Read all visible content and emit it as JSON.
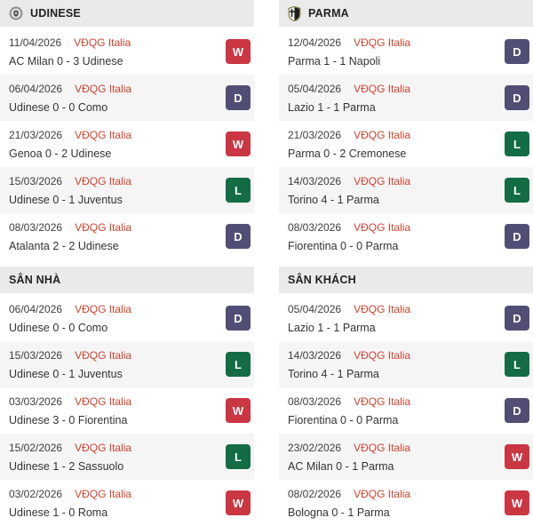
{
  "colors": {
    "win": "#ca3642",
    "draw": "#514e76",
    "loss": "#146c45",
    "league_text": "#d0432e",
    "header_bg": "#eaeaea",
    "row_alt_bg": "#f5f5f6"
  },
  "result_legend": {
    "win_letter": "W",
    "draw_letter": "D",
    "loss_letter": "L"
  },
  "sections": [
    {
      "id": "udinese-recent-form",
      "title": "UDINESE",
      "icon": "udinese-crest-icon",
      "matches": [
        {
          "date": "11/04/2026",
          "league": "VĐQG Italia",
          "match": "AC Milan 0 - 3 Udinese",
          "result": "W"
        },
        {
          "date": "06/04/2026",
          "league": "VĐQG Italia",
          "match": "Udinese 0 - 0 Como",
          "result": "D"
        },
        {
          "date": "21/03/2026",
          "league": "VĐQG Italia",
          "match": "Genoa 0 - 2 Udinese",
          "result": "W"
        },
        {
          "date": "15/03/2026",
          "league": "VĐQG Italia",
          "match": "Udinese 0 - 1 Juventus",
          "result": "L"
        },
        {
          "date": "08/03/2026",
          "league": "VĐQG Italia",
          "match": "Atalanta 2 - 2 Udinese",
          "result": "D"
        }
      ]
    },
    {
      "id": "parma-recent-form",
      "title": "PARMA",
      "icon": "parma-crest-icon",
      "matches": [
        {
          "date": "12/04/2026",
          "league": "VĐQG Italia",
          "match": "Parma 1 - 1 Napoli",
          "result": "D"
        },
        {
          "date": "05/04/2026",
          "league": "VĐQG Italia",
          "match": "Lazio 1 - 1 Parma",
          "result": "D"
        },
        {
          "date": "21/03/2026",
          "league": "VĐQG Italia",
          "match": "Parma 0 - 2 Cremonese",
          "result": "L"
        },
        {
          "date": "14/03/2026",
          "league": "VĐQG Italia",
          "match": "Torino 4 - 1 Parma",
          "result": "L"
        },
        {
          "date": "08/03/2026",
          "league": "VĐQG Italia",
          "match": "Fiorentina 0 - 0 Parma",
          "result": "D"
        }
      ]
    },
    {
      "id": "home-form",
      "title": "SÂN NHÀ",
      "icon": null,
      "matches": [
        {
          "date": "06/04/2026",
          "league": "VĐQG Italia",
          "match": "Udinese 0 - 0 Como",
          "result": "D"
        },
        {
          "date": "15/03/2026",
          "league": "VĐQG Italia",
          "match": "Udinese 0 - 1 Juventus",
          "result": "L"
        },
        {
          "date": "03/03/2026",
          "league": "VĐQG Italia",
          "match": "Udinese 3 - 0 Fiorentina",
          "result": "W"
        },
        {
          "date": "15/02/2026",
          "league": "VĐQG Italia",
          "match": "Udinese 1 - 2 Sassuolo",
          "result": "L"
        },
        {
          "date": "03/02/2026",
          "league": "VĐQG Italia",
          "match": "Udinese 1 - 0 Roma",
          "result": "W"
        }
      ]
    },
    {
      "id": "away-form",
      "title": "SÂN KHÁCH",
      "icon": null,
      "matches": [
        {
          "date": "05/04/2026",
          "league": "VĐQG Italia",
          "match": "Lazio 1 - 1 Parma",
          "result": "D"
        },
        {
          "date": "14/03/2026",
          "league": "VĐQG Italia",
          "match": "Torino 4 - 1 Parma",
          "result": "L"
        },
        {
          "date": "08/03/2026",
          "league": "VĐQG Italia",
          "match": "Fiorentina 0 - 0 Parma",
          "result": "D"
        },
        {
          "date": "23/02/2026",
          "league": "VĐQG Italia",
          "match": "AC Milan 0 - 1 Parma",
          "result": "W"
        },
        {
          "date": "08/02/2026",
          "league": "VĐQG Italia",
          "match": "Bologna 0 - 1 Parma",
          "result": "W"
        }
      ]
    }
  ]
}
